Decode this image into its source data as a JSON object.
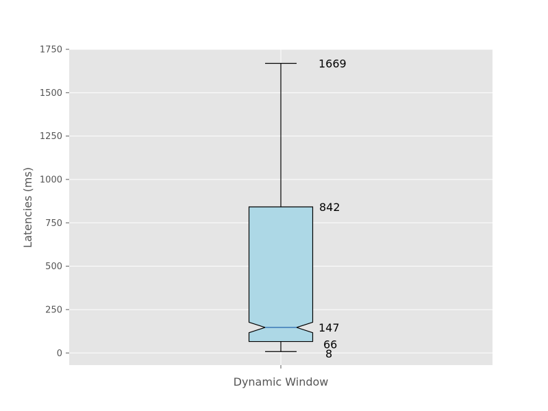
{
  "chart_data": {
    "type": "box",
    "title": "",
    "xlabel": "",
    "ylabel": "Latencies (ms)",
    "categories": [
      "Dynamic Window"
    ],
    "box": {
      "whisker_low": 8,
      "q1": 66,
      "median": 147,
      "q3": 842,
      "whisker_high": 1669,
      "notched": true
    },
    "annotations": [
      "1669",
      "842",
      "147",
      "66",
      "8"
    ],
    "ylim": [
      -70,
      1750
    ],
    "yticks": [
      0,
      250,
      500,
      750,
      1000,
      1250,
      1500,
      1750
    ],
    "grid": true,
    "colors": {
      "plot_bg": "#e5e5e5",
      "grid": "#ffffff",
      "box_fill": "#add8e6",
      "box_edge": "#000000",
      "median": "#3a78b5",
      "tick_text": "#555555"
    }
  }
}
